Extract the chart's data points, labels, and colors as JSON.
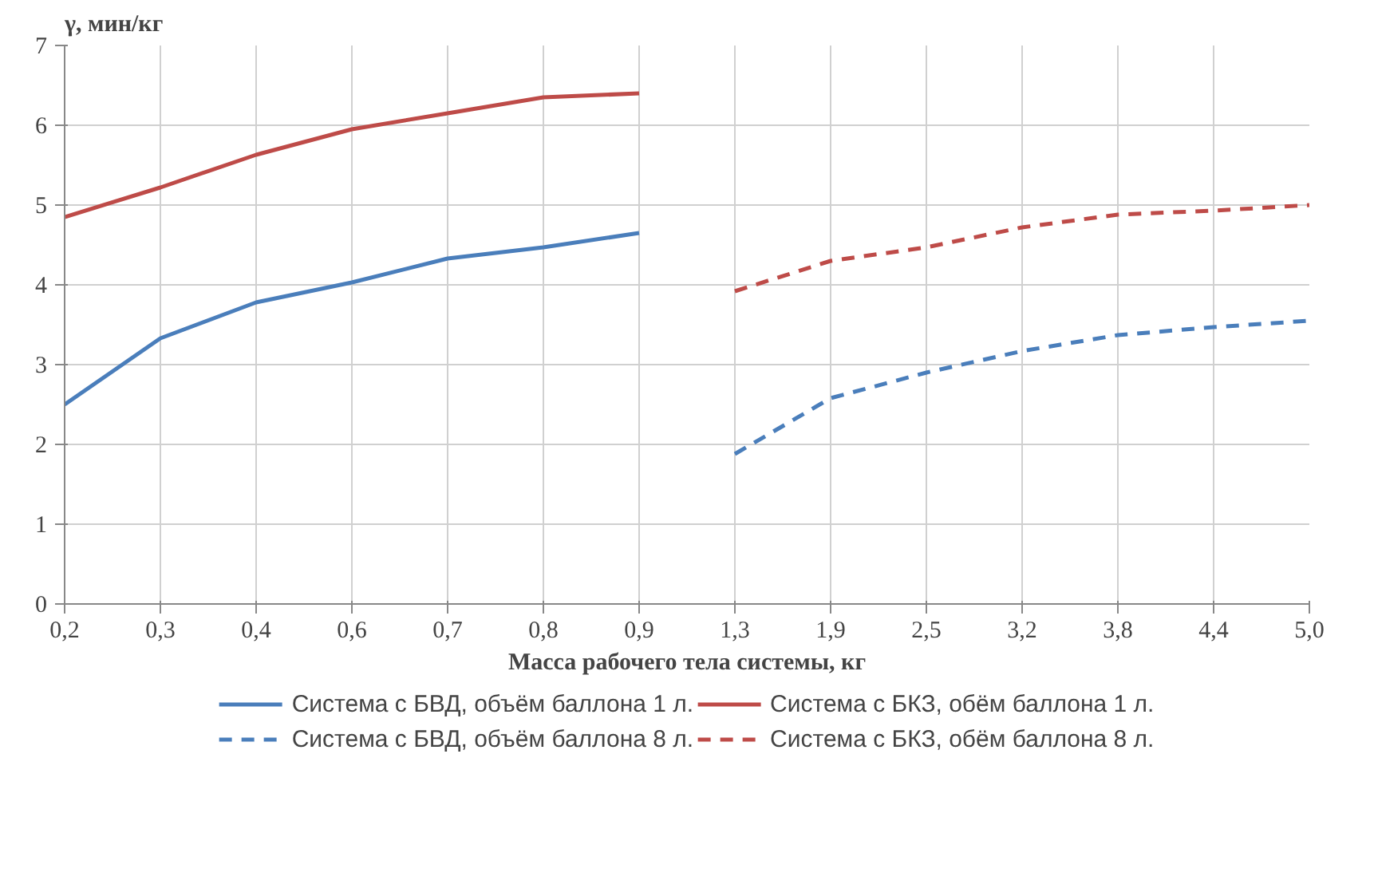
{
  "chart_data": {
    "type": "line",
    "ylabel": "γ, мин/кг",
    "xlabel": "Масса рабочего тела системы, кг",
    "categories": [
      "0,2",
      "0,3",
      "0,4",
      "0,6",
      "0,7",
      "0,8",
      "0,9",
      "1,3",
      "1,9",
      "2,5",
      "3,2",
      "3,8",
      "4,4",
      "5,0"
    ],
    "ylim": [
      0,
      7
    ],
    "yticks": [
      0,
      1,
      2,
      3,
      4,
      5,
      6,
      7
    ],
    "grid": true,
    "legend": "bottom",
    "marker": "none",
    "series": [
      {
        "name": "Система с БВД, объём баллона 1 л.",
        "color": "#4a7ebb",
        "line_style": "solid",
        "values": [
          2.5,
          3.33,
          3.78,
          4.03,
          4.33,
          4.47,
          4.65,
          null,
          null,
          null,
          null,
          null,
          null,
          null
        ]
      },
      {
        "name": "Система с БВД, объём баллона 8 л.",
        "color": "#4a7ebb",
        "line_style": "dashed",
        "values": [
          null,
          null,
          null,
          null,
          null,
          null,
          null,
          1.88,
          2.58,
          2.9,
          3.17,
          3.37,
          3.47,
          3.55
        ]
      },
      {
        "name": "Система с БКЗ, обём баллона 1 л.",
        "color": "#be4b48",
        "line_style": "solid",
        "values": [
          4.85,
          5.22,
          5.63,
          5.95,
          6.15,
          6.35,
          6.4,
          null,
          null,
          null,
          null,
          null,
          null,
          null
        ]
      },
      {
        "name": "Система с БКЗ, обём баллона 8 л.",
        "color": "#be4b48",
        "line_style": "dashed",
        "values": [
          null,
          null,
          null,
          null,
          null,
          null,
          null,
          3.92,
          4.3,
          4.47,
          4.72,
          4.88,
          4.93,
          5.0
        ]
      }
    ]
  }
}
